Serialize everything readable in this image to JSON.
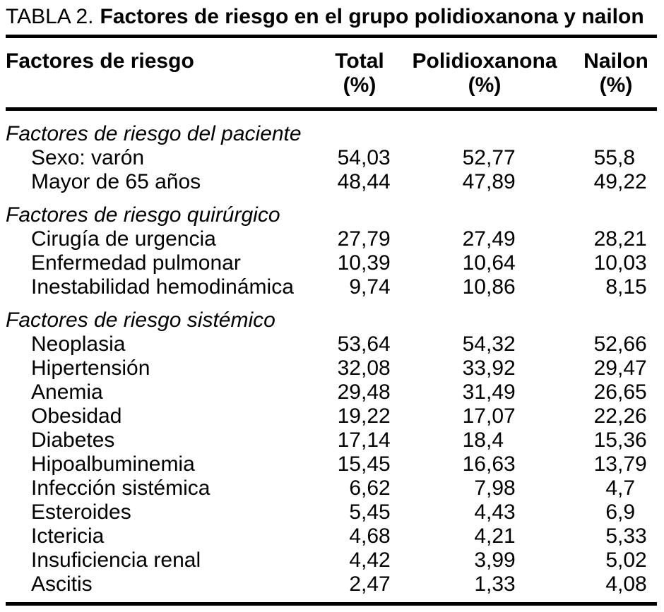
{
  "title": {
    "label": "TABLA 2.",
    "text": "Factores de riesgo en el grupo polidioxanona y nailon"
  },
  "colors": {
    "text": "#000000",
    "background": "#ffffff",
    "rule": "#000000"
  },
  "table": {
    "header": {
      "factor_column": "Factores de riesgo",
      "columns": [
        {
          "name": "Total",
          "unit": "(%)"
        },
        {
          "name": "Polidioxanona",
          "unit": "(%)"
        },
        {
          "name": "Nailon",
          "unit": "(%)"
        }
      ]
    },
    "sections": [
      {
        "label": "Factores de riesgo del paciente",
        "rows": [
          {
            "label": "Sexo: varón",
            "total": "54,03",
            "polidioxanona": "52,77",
            "nailon": "55,8"
          },
          {
            "label": "Mayor de 65 años",
            "total": "48,44",
            "polidioxanona": "47,89",
            "nailon": "49,22"
          }
        ]
      },
      {
        "label": "Factores de riesgo quirúrgico",
        "rows": [
          {
            "label": "Cirugía de urgencia",
            "total": "27,79",
            "polidioxanona": "27,49",
            "nailon": "28,21"
          },
          {
            "label": "Enfermedad pulmonar",
            "total": "10,39",
            "polidioxanona": "10,64",
            "nailon": "10,03"
          },
          {
            "label": "Inestabilidad hemodinámica",
            "total": "9,74",
            "polidioxanona": "10,86",
            "nailon": "8,15"
          }
        ]
      },
      {
        "label": "Factores de riesgo sistémico",
        "rows": [
          {
            "label": "Neoplasia",
            "total": "53,64",
            "polidioxanona": "54,32",
            "nailon": "52,66"
          },
          {
            "label": "Hipertensión",
            "total": "32,08",
            "polidioxanona": "33,92",
            "nailon": "29,47"
          },
          {
            "label": "Anemia",
            "total": "29,48",
            "polidioxanona": "31,49",
            "nailon": "26,65"
          },
          {
            "label": "Obesidad",
            "total": "19,22",
            "polidioxanona": "17,07",
            "nailon": "22,26"
          },
          {
            "label": "Diabetes",
            "total": "17,14",
            "polidioxanona": "18,4",
            "nailon": "15,36"
          },
          {
            "label": "Hipoalbuminemia",
            "total": "15,45",
            "polidioxanona": "16,63",
            "nailon": "13,79"
          },
          {
            "label": "Infección sistémica",
            "total": "6,62",
            "polidioxanona": "7,98",
            "nailon": "4,7"
          },
          {
            "label": "Esteroides",
            "total": "5,45",
            "polidioxanona": "4,43",
            "nailon": "6,9"
          },
          {
            "label": "Ictericia",
            "total": "4,68",
            "polidioxanona": "4,21",
            "nailon": "5,33"
          },
          {
            "label": "Insuficiencia renal",
            "total": "4,42",
            "polidioxanona": "3,99",
            "nailon": "5,02"
          },
          {
            "label": "Ascitis",
            "total": "2,47",
            "polidioxanona": "1,33",
            "nailon": "4,08"
          }
        ]
      }
    ]
  }
}
